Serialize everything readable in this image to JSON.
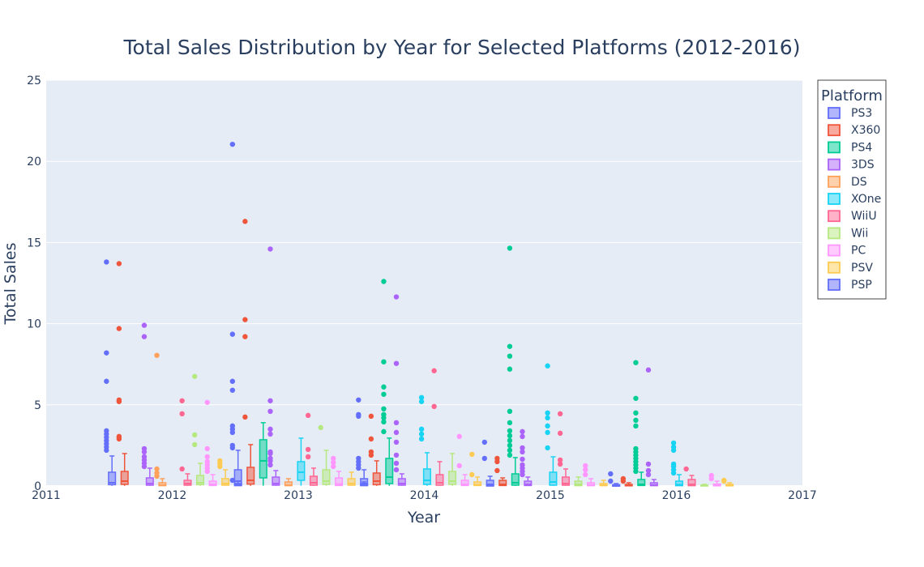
{
  "chart_data": {
    "type": "box",
    "title": "Total Sales Distribution by Year for Selected Platforms (2012-2016)",
    "xlabel": "Year",
    "ylabel": "Total Sales",
    "xlim": [
      2011,
      2017
    ],
    "ylim": [
      0,
      25
    ],
    "x_ticks": [
      2011,
      2012,
      2013,
      2014,
      2015,
      2016,
      2017
    ],
    "y_ticks": [
      0,
      5,
      10,
      15,
      20,
      25
    ],
    "grid": true,
    "legend": {
      "title": "Platform",
      "placement": "right"
    },
    "platforms": [
      {
        "name": "PS3",
        "color": "#636efa"
      },
      {
        "name": "X360",
        "color": "#EF553B"
      },
      {
        "name": "PS4",
        "color": "#00cc96"
      },
      {
        "name": "3DS",
        "color": "#ab63fa"
      },
      {
        "name": "DS",
        "color": "#FFA15A"
      },
      {
        "name": "XOne",
        "color": "#19d3f3"
      },
      {
        "name": "WiiU",
        "color": "#FF6692"
      },
      {
        "name": "Wii",
        "color": "#B6E880"
      },
      {
        "name": "PC",
        "color": "#FF97FF"
      },
      {
        "name": "PSV",
        "color": "#FECB52"
      },
      {
        "name": "PSP",
        "color": "#636efa"
      }
    ],
    "boxes": [
      {
        "platform": "PS3",
        "year": 2012,
        "q1": 0.08,
        "median": 0.2,
        "q3": 0.85,
        "lowerfence": 0.01,
        "upperfence": 1.85,
        "outliers": [
          2.2,
          2.4,
          2.6,
          2.8,
          3.0,
          3.2,
          3.4,
          6.45,
          8.2,
          13.8
        ]
      },
      {
        "platform": "X360",
        "year": 2012,
        "q1": 0.1,
        "median": 0.3,
        "q3": 0.9,
        "lowerfence": 0.01,
        "upperfence": 2.0,
        "outliers": [
          2.9,
          3.0,
          3.05,
          5.2,
          5.3,
          9.7,
          13.7
        ]
      },
      {
        "platform": "3DS",
        "year": 2012,
        "q1": 0.05,
        "median": 0.15,
        "q3": 0.5,
        "lowerfence": 0.01,
        "upperfence": 1.1,
        "outliers": [
          1.2,
          1.4,
          1.6,
          1.8,
          2.1,
          2.3,
          9.2,
          9.9
        ]
      },
      {
        "platform": "DS",
        "year": 2012,
        "q1": 0.02,
        "median": 0.05,
        "q3": 0.2,
        "lowerfence": 0.01,
        "upperfence": 0.45,
        "outliers": [
          0.6,
          0.8,
          1.05,
          8.05
        ]
      },
      {
        "platform": "WiiU",
        "year": 2012,
        "q1": 0.05,
        "median": 0.15,
        "q3": 0.35,
        "lowerfence": 0.01,
        "upperfence": 0.75,
        "outliers": [
          1.05,
          4.45,
          5.25
        ]
      },
      {
        "platform": "Wii",
        "year": 2012,
        "q1": 0.08,
        "median": 0.2,
        "q3": 0.65,
        "lowerfence": 0.01,
        "upperfence": 1.4,
        "outliers": [
          2.55,
          3.15,
          6.75
        ]
      },
      {
        "platform": "PC",
        "year": 2012,
        "q1": 0.03,
        "median": 0.1,
        "q3": 0.3,
        "lowerfence": 0.01,
        "upperfence": 0.7,
        "outliers": [
          0.9,
          1.1,
          1.3,
          1.5,
          1.8,
          2.3,
          5.15
        ]
      },
      {
        "platform": "PSV",
        "year": 2012,
        "q1": 0.05,
        "median": 0.15,
        "q3": 0.45,
        "lowerfence": 0.01,
        "upperfence": 1.0,
        "outliers": [
          1.2,
          1.4,
          1.55
        ]
      },
      {
        "platform": "PSP",
        "year": 2012,
        "q1": 0.02,
        "median": 0.06,
        "q3": 0.15,
        "lowerfence": 0.01,
        "upperfence": 0.3,
        "outliers": [
          0.35
        ]
      },
      {
        "platform": "PS3",
        "year": 2013,
        "q1": 0.1,
        "median": 0.3,
        "q3": 1.0,
        "lowerfence": 0.01,
        "upperfence": 2.2,
        "outliers": [
          2.35,
          2.5,
          3.3,
          3.5,
          3.7,
          5.9,
          6.45,
          9.35,
          21.05
        ]
      },
      {
        "platform": "X360",
        "year": 2013,
        "q1": 0.12,
        "median": 0.35,
        "q3": 1.15,
        "lowerfence": 0.01,
        "upperfence": 2.55,
        "outliers": [
          4.25,
          9.2,
          10.25,
          16.3
        ]
      },
      {
        "platform": "PS4",
        "year": 2013,
        "q1": 0.5,
        "median": 1.55,
        "q3": 2.85,
        "lowerfence": 0.02,
        "upperfence": 3.9,
        "outliers": []
      },
      {
        "platform": "3DS",
        "year": 2013,
        "q1": 0.05,
        "median": 0.15,
        "q3": 0.55,
        "lowerfence": 0.01,
        "upperfence": 0.95,
        "outliers": [
          1.3,
          1.55,
          1.7,
          2.0,
          2.1,
          3.2,
          3.5,
          4.6,
          5.25,
          14.6
        ]
      },
      {
        "platform": "DS",
        "year": 2013,
        "q1": 0.02,
        "median": 0.05,
        "q3": 0.25,
        "lowerfence": 0.01,
        "upperfence": 0.45,
        "outliers": []
      },
      {
        "platform": "XOne",
        "year": 2013,
        "q1": 0.35,
        "median": 0.85,
        "q3": 1.5,
        "lowerfence": 0.02,
        "upperfence": 2.95,
        "outliers": []
      },
      {
        "platform": "WiiU",
        "year": 2013,
        "q1": 0.05,
        "median": 0.2,
        "q3": 0.6,
        "lowerfence": 0.01,
        "upperfence": 1.1,
        "outliers": [
          1.8,
          2.25,
          4.35
        ]
      },
      {
        "platform": "Wii",
        "year": 2013,
        "q1": 0.1,
        "median": 0.3,
        "q3": 1.0,
        "lowerfence": 0.01,
        "upperfence": 2.2,
        "outliers": [
          3.6
        ]
      },
      {
        "platform": "PC",
        "year": 2013,
        "q1": 0.03,
        "median": 0.12,
        "q3": 0.5,
        "lowerfence": 0.01,
        "upperfence": 0.9,
        "outliers": [
          1.2,
          1.45,
          1.7
        ]
      },
      {
        "platform": "PSV",
        "year": 2013,
        "q1": 0.05,
        "median": 0.15,
        "q3": 0.45,
        "lowerfence": 0.01,
        "upperfence": 0.85,
        "outliers": []
      },
      {
        "platform": "PSP",
        "year": 2013,
        "q1": 0.02,
        "median": 0.05,
        "q3": 0.12,
        "lowerfence": 0.01,
        "upperfence": 0.25,
        "outliers": []
      },
      {
        "platform": "PS3",
        "year": 2014,
        "q1": 0.05,
        "median": 0.15,
        "q3": 0.45,
        "lowerfence": 0.01,
        "upperfence": 1.0,
        "outliers": [
          1.1,
          1.3,
          1.5,
          1.7,
          4.3,
          4.4,
          5.3
        ]
      },
      {
        "platform": "X360",
        "year": 2014,
        "q1": 0.08,
        "median": 0.3,
        "q3": 0.8,
        "lowerfence": 0.01,
        "upperfence": 1.55,
        "outliers": [
          1.9,
          2.1,
          2.9,
          4.3
        ]
      },
      {
        "platform": "PS4",
        "year": 2014,
        "q1": 0.15,
        "median": 0.55,
        "q3": 1.7,
        "lowerfence": 0.01,
        "upperfence": 2.95,
        "outliers": [
          3.35,
          3.95,
          4.2,
          4.4,
          4.75,
          5.65,
          6.1,
          7.65,
          12.6
        ]
      },
      {
        "platform": "3DS",
        "year": 2014,
        "q1": 0.05,
        "median": 0.15,
        "q3": 0.45,
        "lowerfence": 0.01,
        "upperfence": 0.75,
        "outliers": [
          1.0,
          1.4,
          1.9,
          2.7,
          3.3,
          3.9,
          7.55,
          11.65
        ]
      },
      {
        "platform": "XOne",
        "year": 2014,
        "q1": 0.1,
        "median": 0.35,
        "q3": 1.05,
        "lowerfence": 0.01,
        "upperfence": 2.05,
        "outliers": [
          2.9,
          3.2,
          3.5,
          5.2,
          5.45
        ]
      },
      {
        "platform": "WiiU",
        "year": 2014,
        "q1": 0.05,
        "median": 0.2,
        "q3": 0.7,
        "lowerfence": 0.01,
        "upperfence": 1.5,
        "outliers": [
          4.9,
          7.1
        ]
      },
      {
        "platform": "Wii",
        "year": 2014,
        "q1": 0.1,
        "median": 0.3,
        "q3": 0.9,
        "lowerfence": 0.01,
        "upperfence": 2.0,
        "outliers": []
      },
      {
        "platform": "PC",
        "year": 2014,
        "q1": 0.03,
        "median": 0.1,
        "q3": 0.35,
        "lowerfence": 0.01,
        "upperfence": 0.7,
        "outliers": [
          1.25,
          3.05
        ]
      },
      {
        "platform": "PSV",
        "year": 2014,
        "q1": 0.03,
        "median": 0.08,
        "q3": 0.25,
        "lowerfence": 0.01,
        "upperfence": 0.55,
        "outliers": [
          0.7,
          1.95
        ]
      },
      {
        "platform": "PSP",
        "year": 2014,
        "q1": 0.01,
        "median": 0.02,
        "q3": 0.05,
        "lowerfence": 0.01,
        "upperfence": 0.1,
        "outliers": []
      },
      {
        "platform": "PS3",
        "year": 2015,
        "q1": 0.02,
        "median": 0.1,
        "q3": 0.35,
        "lowerfence": 0.01,
        "upperfence": 0.6,
        "outliers": [
          1.7,
          2.7
        ]
      },
      {
        "platform": "X360",
        "year": 2015,
        "q1": 0.03,
        "median": 0.1,
        "q3": 0.35,
        "lowerfence": 0.01,
        "upperfence": 0.5,
        "outliers": [
          0.95,
          1.5,
          1.7
        ]
      },
      {
        "platform": "PS4",
        "year": 2015,
        "q1": 0.05,
        "median": 0.2,
        "q3": 0.75,
        "lowerfence": 0.01,
        "upperfence": 1.75,
        "outliers": [
          1.9,
          2.2,
          2.5,
          2.8,
          3.1,
          3.4,
          3.9,
          4.6,
          7.2,
          8.0,
          8.6,
          14.65
        ]
      },
      {
        "platform": "3DS",
        "year": 2015,
        "q1": 0.03,
        "median": 0.1,
        "q3": 0.3,
        "lowerfence": 0.01,
        "upperfence": 0.55,
        "outliers": [
          0.7,
          0.9,
          1.1,
          1.3,
          1.65,
          2.1,
          2.35,
          3.05,
          3.35
        ]
      },
      {
        "platform": "XOne",
        "year": 2015,
        "q1": 0.05,
        "median": 0.25,
        "q3": 0.85,
        "lowerfence": 0.01,
        "upperfence": 1.8,
        "outliers": [
          2.35,
          3.3,
          3.7,
          4.2,
          4.5,
          7.4
        ]
      },
      {
        "platform": "WiiU",
        "year": 2015,
        "q1": 0.05,
        "median": 0.15,
        "q3": 0.55,
        "lowerfence": 0.01,
        "upperfence": 1.05,
        "outliers": [
          1.35,
          1.6,
          3.25,
          4.45
        ]
      },
      {
        "platform": "Wii",
        "year": 2015,
        "q1": 0.02,
        "median": 0.1,
        "q3": 0.3,
        "lowerfence": 0.01,
        "upperfence": 0.55,
        "outliers": []
      },
      {
        "platform": "PC",
        "year": 2015,
        "q1": 0.02,
        "median": 0.06,
        "q3": 0.2,
        "lowerfence": 0.01,
        "upperfence": 0.45,
        "outliers": [
          0.7,
          1.0,
          1.25
        ]
      },
      {
        "platform": "PSV",
        "year": 2015,
        "q1": 0.02,
        "median": 0.05,
        "q3": 0.15,
        "lowerfence": 0.01,
        "upperfence": 0.35,
        "outliers": []
      },
      {
        "platform": "PSP",
        "year": 2015,
        "q1": 0.01,
        "median": 0.02,
        "q3": 0.04,
        "lowerfence": 0.01,
        "upperfence": 0.05,
        "outliers": []
      },
      {
        "platform": "PS3",
        "year": 2016,
        "q1": 0.01,
        "median": 0.03,
        "q3": 0.08,
        "lowerfence": 0.01,
        "upperfence": 0.15,
        "outliers": [
          0.3,
          0.75
        ]
      },
      {
        "platform": "X360",
        "year": 2016,
        "q1": 0.01,
        "median": 0.03,
        "q3": 0.1,
        "lowerfence": 0.01,
        "upperfence": 0.2,
        "outliers": [
          0.3,
          0.45
        ]
      },
      {
        "platform": "PS4",
        "year": 2016,
        "q1": 0.03,
        "median": 0.1,
        "q3": 0.4,
        "lowerfence": 0.01,
        "upperfence": 0.85,
        "outliers": [
          0.9,
          1.1,
          1.3,
          1.5,
          1.7,
          1.9,
          2.1,
          2.3,
          3.7,
          4.05,
          4.5,
          5.4,
          7.6
        ]
      },
      {
        "platform": "3DS",
        "year": 2016,
        "q1": 0.02,
        "median": 0.06,
        "q3": 0.2,
        "lowerfence": 0.01,
        "upperfence": 0.4,
        "outliers": [
          0.7,
          0.95,
          1.35,
          7.15
        ]
      },
      {
        "platform": "XOne",
        "year": 2016,
        "q1": 0.02,
        "median": 0.08,
        "q3": 0.3,
        "lowerfence": 0.01,
        "upperfence": 0.7,
        "outliers": [
          0.8,
          1.0,
          1.2,
          1.35,
          2.2,
          2.4,
          2.65
        ]
      },
      {
        "platform": "WiiU",
        "year": 2016,
        "q1": 0.02,
        "median": 0.1,
        "q3": 0.4,
        "lowerfence": 0.01,
        "upperfence": 0.65,
        "outliers": [
          1.05
        ]
      },
      {
        "platform": "Wii",
        "year": 2016,
        "q1": 0.01,
        "median": 0.02,
        "q3": 0.05,
        "lowerfence": 0.01,
        "upperfence": 0.1,
        "outliers": []
      },
      {
        "platform": "PC",
        "year": 2016,
        "q1": 0.01,
        "median": 0.04,
        "q3": 0.12,
        "lowerfence": 0.01,
        "upperfence": 0.3,
        "outliers": [
          0.45,
          0.65
        ]
      },
      {
        "platform": "PSV",
        "year": 2016,
        "q1": 0.01,
        "median": 0.03,
        "q3": 0.1,
        "lowerfence": 0.01,
        "upperfence": 0.2,
        "outliers": [
          0.3,
          0.35
        ]
      }
    ]
  }
}
